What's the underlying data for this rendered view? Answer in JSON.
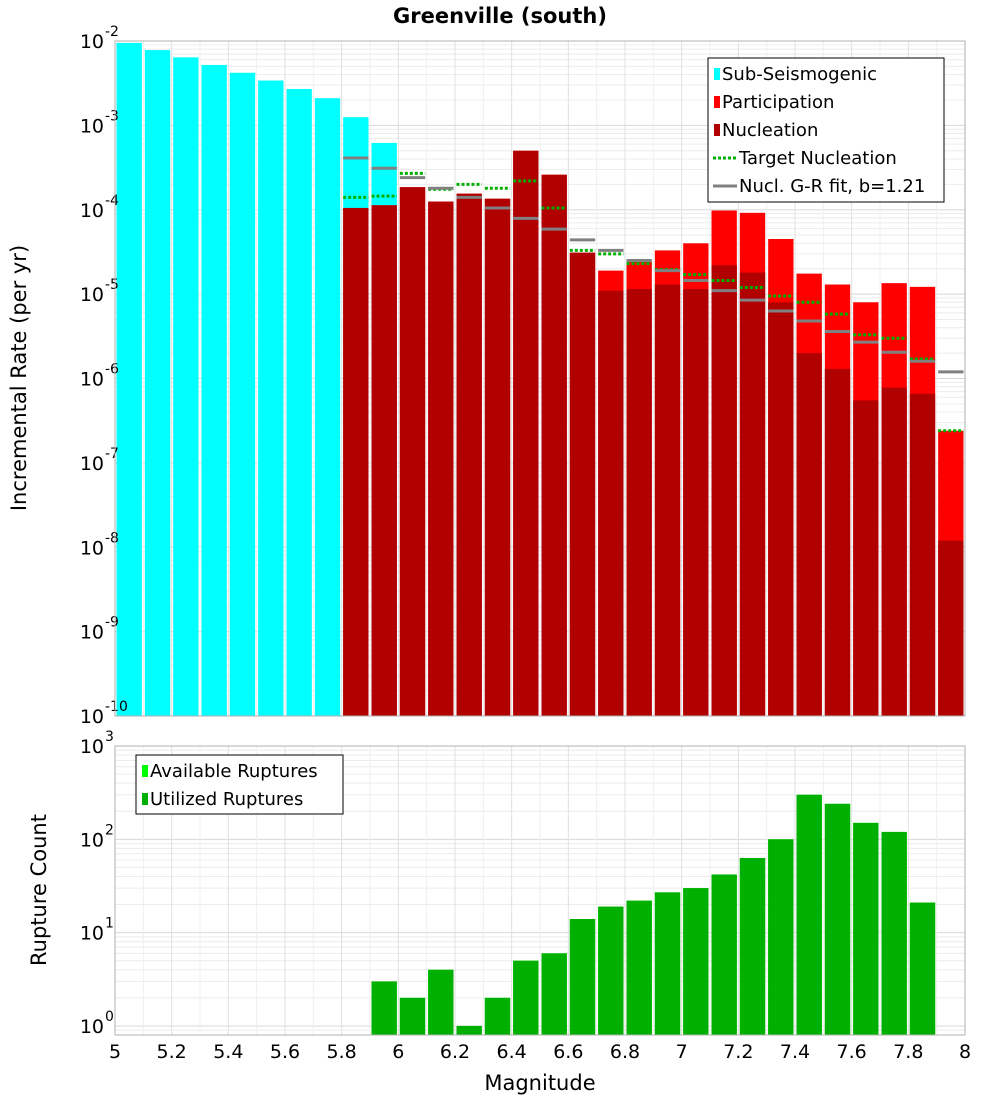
{
  "chart_data": [
    {
      "type": "bar",
      "title": "Greenville (south)",
      "xlabel": "",
      "ylabel": "Incremental Rate (per yr)",
      "yscale": "log",
      "ylim": [
        1e-10,
        0.01
      ],
      "xlim": [
        5,
        8
      ],
      "bar_width": 0.1,
      "grid": true,
      "y_tick_exponents": [
        -2,
        -3,
        -4,
        -5,
        -6,
        -7,
        -8,
        -9,
        -10
      ],
      "legend_position": "top-right",
      "legend": [
        {
          "label": "Sub-Seismogenic",
          "symbol": "bar",
          "color": "#00ffff"
        },
        {
          "label": "Participation",
          "symbol": "bar",
          "color": "#ff0000"
        },
        {
          "label": "Nucleation",
          "symbol": "bar",
          "color": "#b00000"
        },
        {
          "label": " Target Nucleation",
          "symbol": "dotted",
          "color": "#00b000"
        },
        {
          "label": "Nucl. G-R fit, b=1.21",
          "symbol": "line",
          "color": "#808080"
        }
      ],
      "series": [
        {
          "name": "Sub-Seismogenic",
          "color": "#00ffff",
          "x": [
            5.05,
            5.15,
            5.25,
            5.35,
            5.45,
            5.55,
            5.65,
            5.75,
            5.85,
            5.95
          ],
          "values": [
            0.0095,
            0.0078,
            0.0064,
            0.0052,
            0.0042,
            0.0034,
            0.0027,
            0.0021,
            0.00125,
            0.00062
          ]
        },
        {
          "name": "Participation",
          "color": "#ff0000",
          "x": [
            5.85,
            5.95,
            6.05,
            6.15,
            6.25,
            6.35,
            6.45,
            6.55,
            6.65,
            6.75,
            6.85,
            6.95,
            7.05,
            7.15,
            7.25,
            7.35,
            7.45,
            7.55,
            7.65,
            7.75,
            7.85,
            7.95
          ],
          "values": [
            0.000105,
            0.000113,
            0.000185,
            0.000125,
            0.000155,
            0.000135,
            0.0005,
            0.00026,
            3.1e-05,
            1.9e-05,
            2.4e-05,
            3.3e-05,
            4e-05,
            9.8e-05,
            9.2e-05,
            4.5e-05,
            1.75e-05,
            1.3e-05,
            8e-06,
            1.35e-05,
            1.22e-05,
            2.4e-07
          ]
        },
        {
          "name": "Nucleation",
          "color": "#b00000",
          "x": [
            5.85,
            5.95,
            6.05,
            6.15,
            6.25,
            6.35,
            6.45,
            6.55,
            6.65,
            6.75,
            6.85,
            6.95,
            7.05,
            7.15,
            7.25,
            7.35,
            7.45,
            7.55,
            7.65,
            7.75,
            7.85,
            7.95
          ],
          "values": [
            0.000105,
            0.000113,
            0.000185,
            0.000125,
            0.000155,
            0.000135,
            0.0005,
            0.00026,
            3.1e-05,
            1.1e-05,
            1.15e-05,
            1.3e-05,
            1.15e-05,
            2.2e-05,
            1.8e-05,
            8e-06,
            2e-06,
            1.3e-06,
            5.5e-07,
            7.8e-07,
            6.6e-07,
            1.2e-08
          ]
        },
        {
          "name": " Target Nucleation",
          "color": "#00b000",
          "x": [
            5.85,
            5.95,
            6.05,
            6.15,
            6.25,
            6.35,
            6.45,
            6.55,
            6.65,
            6.75,
            6.85,
            6.95,
            7.05,
            7.15,
            7.25,
            7.35,
            7.45,
            7.55,
            7.65,
            7.75,
            7.85,
            7.95
          ],
          "values": [
            0.00014,
            0.000145,
            0.00027,
            0.000175,
            0.0002,
            0.00018,
            0.00022,
            0.000105,
            3.3e-05,
            3e-05,
            2.3e-05,
            1.95e-05,
            1.7e-05,
            1.45e-05,
            1.2e-05,
            9.5e-06,
            8e-06,
            5.8e-06,
            3.3e-06,
            3e-06,
            1.7e-06,
            2.4e-07
          ]
        },
        {
          "name": "Nucl. G-R fit, b=1.21",
          "color": "#808080",
          "x": [
            5.85,
            5.95,
            6.05,
            6.15,
            6.25,
            6.35,
            6.45,
            6.55,
            6.65,
            6.75,
            6.85,
            6.95,
            7.05,
            7.15,
            7.25,
            7.35,
            7.45,
            7.55,
            7.65,
            7.75,
            7.85,
            7.95
          ],
          "values": [
            0.00041,
            0.00031,
            0.00024,
            0.00018,
            0.00014,
            0.000105,
            7.9e-05,
            5.9e-05,
            4.4e-05,
            3.3e-05,
            2.5e-05,
            1.9e-05,
            1.45e-05,
            1.1e-05,
            8.5e-06,
            6.3e-06,
            4.8e-06,
            3.6e-06,
            2.7e-06,
            2.05e-06,
            1.6e-06,
            1.2e-06
          ]
        }
      ]
    },
    {
      "type": "bar",
      "title": "",
      "xlabel": "Magnitude",
      "ylabel": "Rupture Count",
      "yscale": "log",
      "ylim": [
        0.8,
        1000
      ],
      "xlim": [
        5,
        8
      ],
      "bar_width": 0.1,
      "grid": true,
      "y_tick_exponents": [
        3,
        2,
        1,
        0
      ],
      "x_ticks": [
        "5",
        "5.2",
        "5.4",
        "5.6",
        "5.8",
        "6",
        "6.2",
        "6.4",
        "6.6",
        "6.8",
        "7",
        "7.2",
        "7.4",
        "7.6",
        "7.8",
        "8"
      ],
      "legend_position": "top-left",
      "legend": [
        {
          "label": "Available Ruptures",
          "symbol": "bar",
          "color": "#00ff00"
        },
        {
          "label": "Utilized Ruptures",
          "symbol": "bar",
          "color": "#00b000"
        }
      ],
      "series": [
        {
          "name": "Available Ruptures",
          "color": "#00ff00",
          "x": [
            5.95,
            6.05,
            6.15,
            6.25,
            6.35,
            6.45,
            6.55,
            6.65,
            6.75,
            6.85,
            6.95,
            7.05,
            7.15,
            7.25,
            7.35,
            7.45,
            7.55,
            7.65,
            7.75,
            7.85
          ],
          "values": [
            3,
            2,
            4,
            1,
            2,
            5,
            6,
            14,
            19,
            22,
            27,
            30,
            42,
            63,
            100,
            300,
            240,
            150,
            120,
            21
          ]
        },
        {
          "name": "Utilized Ruptures",
          "color": "#00b000",
          "x": [
            5.95,
            6.05,
            6.15,
            6.25,
            6.35,
            6.45,
            6.55,
            6.65,
            6.75,
            6.85,
            6.95,
            7.05,
            7.15,
            7.25,
            7.35,
            7.45,
            7.55,
            7.65,
            7.75,
            7.85
          ],
          "values": [
            3,
            2,
            4,
            1,
            2,
            5,
            6,
            14,
            19,
            22,
            27,
            30,
            42,
            63,
            100,
            300,
            240,
            150,
            120,
            21
          ]
        }
      ]
    }
  ]
}
